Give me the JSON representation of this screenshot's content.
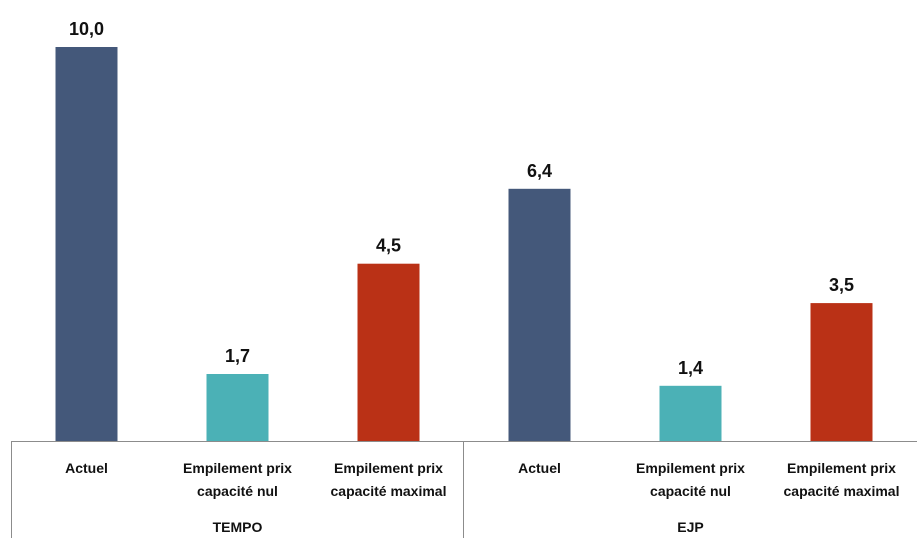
{
  "chart_data": {
    "type": "bar",
    "title": "",
    "xlabel": "",
    "ylabel": "",
    "ylim": [
      0,
      10
    ],
    "grid": false,
    "legend": "none",
    "groups": [
      {
        "label": "TEMPO",
        "bars": [
          {
            "category": [
              "Actuel"
            ],
            "value": 10.0,
            "value_label": "10,0",
            "color": "#44587A"
          },
          {
            "category": [
              "Empilement prix",
              "capacité nul"
            ],
            "value": 1.7,
            "value_label": "1,7",
            "color": "#4BB1B6"
          },
          {
            "category": [
              "Empilement prix",
              "capacité maximal"
            ],
            "value": 4.5,
            "value_label": "4,5",
            "color": "#BA3116"
          }
        ]
      },
      {
        "label": "EJP",
        "bars": [
          {
            "category": [
              "Actuel"
            ],
            "value": 6.4,
            "value_label": "6,4",
            "color": "#44587A"
          },
          {
            "category": [
              "Empilement prix",
              "capacité nul"
            ],
            "value": 1.4,
            "value_label": "1,4",
            "color": "#4BB1B6"
          },
          {
            "category": [
              "Empilement prix",
              "capacité maximal"
            ],
            "value": 3.5,
            "value_label": "3,5",
            "color": "#BA3116"
          }
        ]
      }
    ]
  }
}
